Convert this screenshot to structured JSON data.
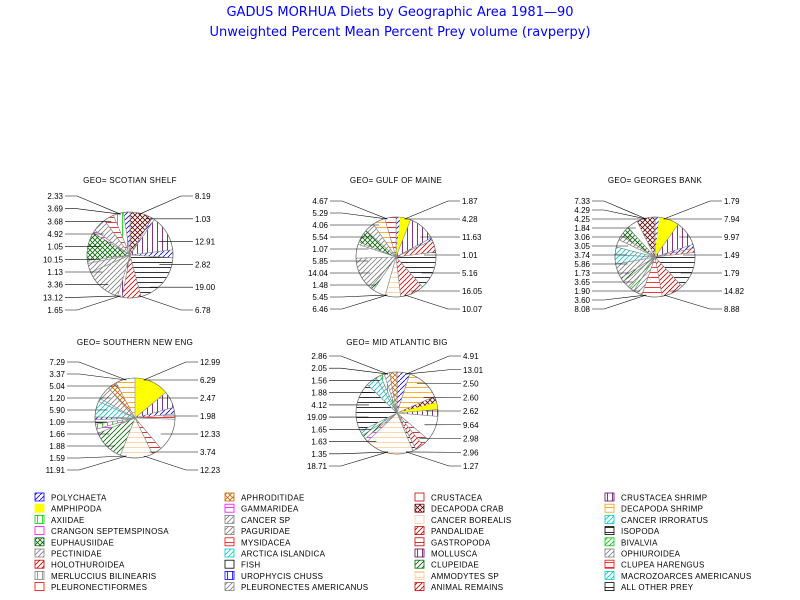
{
  "title": "GADUS MORHUA Diets by Geographic Area 1981—90",
  "subtitle": "Unweighted Percent Mean Percent Prey  volume (ravperpy)",
  "chart_data": {
    "type": "pie",
    "categories": [
      {
        "name": "POLYCHAETA",
        "color": "#0000ff",
        "pattern": "solid-thin"
      },
      {
        "name": "AMPHIPODA",
        "color": "#ffff00",
        "pattern": "solid"
      },
      {
        "name": "AXIIDAE",
        "color": "#00cc00",
        "pattern": "vlines"
      },
      {
        "name": "CRANGON SEPTEMSPINOSA",
        "color": "#ff00ff",
        "pattern": "blank"
      },
      {
        "name": "EUPHAUSIIDAE",
        "color": "#006600",
        "pattern": "cross"
      },
      {
        "name": "PECTINIDAE",
        "color": "#808080",
        "pattern": "diag"
      },
      {
        "name": "HOLOTHUROIDEA",
        "color": "#cc0000",
        "pattern": "diag"
      },
      {
        "name": "MERLUCCIUS BILINEARIS",
        "color": "#808080",
        "pattern": "vlines"
      },
      {
        "name": "PLEURONECTIFORMES",
        "color": "#ff0000",
        "pattern": "blank"
      },
      {
        "name": "APHRODITIDAE",
        "color": "#cc6600",
        "pattern": "cross"
      },
      {
        "name": "GAMMARIDEA",
        "color": "#ff00ff",
        "pattern": "hlines"
      },
      {
        "name": "CANCER SP",
        "color": "#808080",
        "pattern": "diag"
      },
      {
        "name": "PAGURIDAE",
        "color": "#808080",
        "pattern": "diag"
      },
      {
        "name": "MYSIDACEA",
        "color": "#ff0000",
        "pattern": "hlines"
      },
      {
        "name": "ARCTICA ISLANDICA",
        "color": "#00cccc",
        "pattern": "diag"
      },
      {
        "name": "FISH",
        "color": "#000000",
        "pattern": "blank"
      },
      {
        "name": "UROPHYCIS CHUSS",
        "color": "#0000ff",
        "pattern": "vlines"
      },
      {
        "name": "PLEURONECTES AMERICANUS",
        "color": "#808080",
        "pattern": "diag"
      },
      {
        "name": "CRUSTACEA",
        "color": "#cc0000",
        "pattern": "blank"
      },
      {
        "name": "DECAPODA CRAB",
        "color": "#660000",
        "pattern": "cross"
      },
      {
        "name": "CANCER BOREALIS",
        "color": "#ffcc99",
        "pattern": "blank"
      },
      {
        "name": "PANDALIDAE",
        "color": "#cc0000",
        "pattern": "diag"
      },
      {
        "name": "GASTROPODA",
        "color": "#cc0000",
        "pattern": "hlines"
      },
      {
        "name": "MOLLUSCA",
        "color": "#660066",
        "pattern": "vlines"
      },
      {
        "name": "CLUPEIDAE",
        "color": "#006600",
        "pattern": "diag"
      },
      {
        "name": "AMMODYTES SP",
        "color": "#ffcc99",
        "pattern": "hlines"
      },
      {
        "name": "ANIMAL REMAINS",
        "color": "#cc0000",
        "pattern": "diag"
      },
      {
        "name": "CRUSTACEA SHRIMP",
        "color": "#660066",
        "pattern": "vlines"
      },
      {
        "name": "DECAPODA SHRIMP",
        "color": "#ff9900",
        "pattern": "hlines"
      },
      {
        "name": "CANCER IRRORATUS",
        "color": "#00cccc",
        "pattern": "diag"
      },
      {
        "name": "ISOPODA",
        "color": "#000000",
        "pattern": "hlines"
      },
      {
        "name": "BIVALVIA",
        "color": "#00cc00",
        "pattern": "diag"
      },
      {
        "name": "OPHIUROIDEA",
        "color": "#808080",
        "pattern": "diag"
      },
      {
        "name": "CLUPEA HARENGUS",
        "color": "#ff0000",
        "pattern": "hlines"
      },
      {
        "name": "MACROZOARCES AMERICANUS",
        "color": "#00cccc",
        "pattern": "diag"
      },
      {
        "name": "ALL OTHER PREY",
        "color": "#000000",
        "pattern": "hlines"
      }
    ],
    "pies": [
      {
        "title": "GEO= SCOTIAN SHELF",
        "left_labels": [
          "2.33",
          "3.69",
          "3.68",
          "4.92",
          "1.05",
          "10.15",
          "1.13",
          "3.36",
          "13.12",
          "1.65"
        ],
        "right_labels": [
          "8.19",
          "1.03",
          "12.91",
          "2.82",
          "19.00",
          "6.78"
        ],
        "slices": [
          {
            "label": "8.19",
            "cat": 19,
            "value": 8.19
          },
          {
            "label": "1.03",
            "cat": 0,
            "value": 1.03
          },
          {
            "label": "12.91",
            "cat": 27,
            "value": 12.91
          },
          {
            "label": "2.82",
            "cat": 0,
            "value": 2.82
          },
          {
            "label": "19.00",
            "cat": 35,
            "value": 19.0
          },
          {
            "label": "6.78",
            "cat": 26,
            "value": 6.78
          },
          {
            "label": "1.65",
            "cat": 23,
            "value": 1.65
          },
          {
            "label": "13.12",
            "cat": 17,
            "value": 13.12
          },
          {
            "label": "3.36",
            "cat": 32,
            "value": 3.36
          },
          {
            "label": "1.13",
            "cat": 5,
            "value": 1.13
          },
          {
            "label": "10.15",
            "cat": 4,
            "value": 10.15
          },
          {
            "label": "1.05",
            "cat": 10,
            "value": 1.05
          },
          {
            "label": "4.92",
            "cat": 11,
            "value": 4.92
          },
          {
            "label": "3.68",
            "cat": 13,
            "value": 3.68
          },
          {
            "label": "3.69",
            "cat": 2,
            "value": 3.69
          },
          {
            "label": "2.33",
            "cat": 0,
            "value": 2.33
          }
        ]
      },
      {
        "title": "GEO= GULF OF MAINE",
        "left_labels": [
          "4.67",
          "5.29",
          "4.06",
          "5.54",
          "1.07",
          "5.85",
          "14.04",
          "1.48",
          "5.45",
          "6.46"
        ],
        "right_labels": [
          "1.87",
          "4.28",
          "11.63",
          "1.01",
          "5.16",
          "16.05",
          "10.07"
        ],
        "slices": [
          {
            "label": "1.87",
            "cat": 0,
            "value": 1.87
          },
          {
            "label": "4.28",
            "cat": 1,
            "value": 4.28
          },
          {
            "label": "11.63",
            "cat": 27,
            "value": 11.63
          },
          {
            "label": "1.01",
            "cat": 0,
            "value": 1.01
          },
          {
            "label": "5.16",
            "cat": 6,
            "value": 5.16
          },
          {
            "label": "16.05",
            "cat": 35,
            "value": 16.05
          },
          {
            "label": "10.07",
            "cat": 26,
            "value": 10.07
          },
          {
            "label": "6.46",
            "cat": 25,
            "value": 6.46
          },
          {
            "label": "5.45",
            "cat": 20,
            "value": 5.45
          },
          {
            "label": "1.48",
            "cat": 24,
            "value": 1.48
          },
          {
            "label": "14.04",
            "cat": 17,
            "value": 14.04
          },
          {
            "label": "5.85",
            "cat": 15,
            "value": 5.85
          },
          {
            "label": "1.07",
            "cat": 11,
            "value": 1.07
          },
          {
            "label": "5.54",
            "cat": 4,
            "value": 5.54
          },
          {
            "label": "4.06",
            "cat": 5,
            "value": 4.06
          },
          {
            "label": "5.29",
            "cat": 28,
            "value": 5.29
          },
          {
            "label": "4.67",
            "cat": 22,
            "value": 4.67
          }
        ]
      },
      {
        "title": "GEO= GEORGES BANK",
        "left_labels": [
          "7.33",
          "4.29",
          "4.25",
          "1.84",
          "3.06",
          "3.05",
          "3.74",
          "5.86",
          "1.73",
          "3.65",
          "1.90",
          "3.60",
          "8.08"
        ],
        "right_labels": [
          "1.79",
          "7.94",
          "9.97",
          "1.49",
          "1.79",
          "14.82",
          "8.88"
        ],
        "slices": [
          {
            "label": "1.79",
            "cat": 0,
            "value": 1.79
          },
          {
            "label": "7.94",
            "cat": 1,
            "value": 7.94
          },
          {
            "label": "9.97",
            "cat": 27,
            "value": 9.97
          },
          {
            "label": "1.49",
            "cat": 0,
            "value": 1.49
          },
          {
            "label": "1.79",
            "cat": 21,
            "value": 1.79
          },
          {
            "label": "14.82",
            "cat": 35,
            "value": 14.82
          },
          {
            "label": "8.88",
            "cat": 26,
            "value": 8.88
          },
          {
            "label": "8.08",
            "cat": 33,
            "value": 8.08
          },
          {
            "label": "3.60",
            "cat": 32,
            "value": 3.6
          },
          {
            "label": "1.90",
            "cat": 31,
            "value": 1.9
          },
          {
            "label": "3.65",
            "cat": 5,
            "value": 3.65
          },
          {
            "label": "1.73",
            "cat": 24,
            "value": 1.73
          },
          {
            "label": "5.86",
            "cat": 17,
            "value": 5.86
          },
          {
            "label": "3.74",
            "cat": 29,
            "value": 3.74
          },
          {
            "label": "3.05",
            "cat": 14,
            "value": 3.05
          },
          {
            "label": "3.06",
            "cat": 15,
            "value": 3.06
          },
          {
            "label": "1.84",
            "cat": 11,
            "value": 1.84
          },
          {
            "label": "4.25",
            "cat": 4,
            "value": 4.25
          },
          {
            "label": "4.29",
            "cat": 3,
            "value": 4.29
          },
          {
            "label": "7.33",
            "cat": 19,
            "value": 7.33
          }
        ]
      },
      {
        "title": "GEO= SOUTHERN NEW ENG",
        "left_labels": [
          "7.29",
          "3.37",
          "5.04",
          "1.20",
          "5.90",
          "1.09",
          "1.66",
          "1.88",
          "1.59",
          "11.91"
        ],
        "right_labels": [
          "12.99",
          "6.29",
          "2.47",
          "1.98",
          "12.33",
          "3.74",
          "12.23"
        ],
        "slices": [
          {
            "label": "12.99",
            "cat": 1,
            "value": 12.99
          },
          {
            "label": "6.29",
            "cat": 27,
            "value": 6.29
          },
          {
            "label": "2.47",
            "cat": 0,
            "value": 2.47
          },
          {
            "label": "1.98",
            "cat": 13,
            "value": 1.98
          },
          {
            "label": "12.33",
            "cat": 20,
            "value": 12.33
          },
          {
            "label": "3.74",
            "cat": 22,
            "value": 3.74
          },
          {
            "label": "12.23",
            "cat": 25,
            "value": 12.23
          },
          {
            "label": "11.91",
            "cat": 24,
            "value": 11.91
          },
          {
            "label": "1.59",
            "cat": 10,
            "value": 1.59
          },
          {
            "label": "1.88",
            "cat": 2,
            "value": 1.88
          },
          {
            "label": "1.66",
            "cat": 30,
            "value": 1.66
          },
          {
            "label": "1.09",
            "cat": 0,
            "value": 1.09
          },
          {
            "label": "5.90",
            "cat": 29,
            "value": 5.9
          },
          {
            "label": "1.20",
            "cat": 14,
            "value": 1.2
          },
          {
            "label": "5.04",
            "cat": 11,
            "value": 5.04
          },
          {
            "label": "3.37",
            "cat": 9,
            "value": 3.37
          },
          {
            "label": "7.29",
            "cat": 28,
            "value": 7.29
          }
        ]
      },
      {
        "title": "GEO= MID ATLANTIC BIG",
        "left_labels": [
          "2.86",
          "2.05",
          "1.56",
          "1.88",
          "4.12",
          "19.09",
          "1.65",
          "1.63",
          "1.35",
          "18.71"
        ],
        "right_labels": [
          "4.91",
          "13.01",
          "2.50",
          "2.60",
          "2.62",
          "9.64",
          "2.98",
          "2.96",
          "1.27"
        ],
        "slices": [
          {
            "label": "4.91",
            "cat": 0,
            "value": 4.91
          },
          {
            "label": "13.01",
            "cat": 28,
            "value": 13.01
          },
          {
            "label": "2.50",
            "cat": 19,
            "value": 2.5
          },
          {
            "label": "2.60",
            "cat": 1,
            "value": 2.6
          },
          {
            "label": "2.62",
            "cat": 27,
            "value": 2.62
          },
          {
            "label": "9.64",
            "cat": 20,
            "value": 9.64
          },
          {
            "label": "2.98",
            "cat": 22,
            "value": 2.98
          },
          {
            "label": "2.96",
            "cat": 21,
            "value": 2.96
          },
          {
            "label": "1.27",
            "cat": 30,
            "value": 1.27
          },
          {
            "label": "18.71",
            "cat": 25,
            "value": 18.71
          },
          {
            "label": "1.35",
            "cat": 10,
            "value": 1.35
          },
          {
            "label": "1.63",
            "cat": 24,
            "value": 1.63
          },
          {
            "label": "1.65",
            "cat": 34,
            "value": 1.65
          },
          {
            "label": "19.09",
            "cat": 35,
            "value": 19.09
          },
          {
            "label": "4.12",
            "cat": 29,
            "value": 4.12
          },
          {
            "label": "1.88",
            "cat": 14,
            "value": 1.88
          },
          {
            "label": "1.56",
            "cat": 2,
            "value": 1.56
          },
          {
            "label": "2.05",
            "cat": 11,
            "value": 2.05
          },
          {
            "label": "2.86",
            "cat": 9,
            "value": 2.86
          }
        ]
      }
    ]
  }
}
